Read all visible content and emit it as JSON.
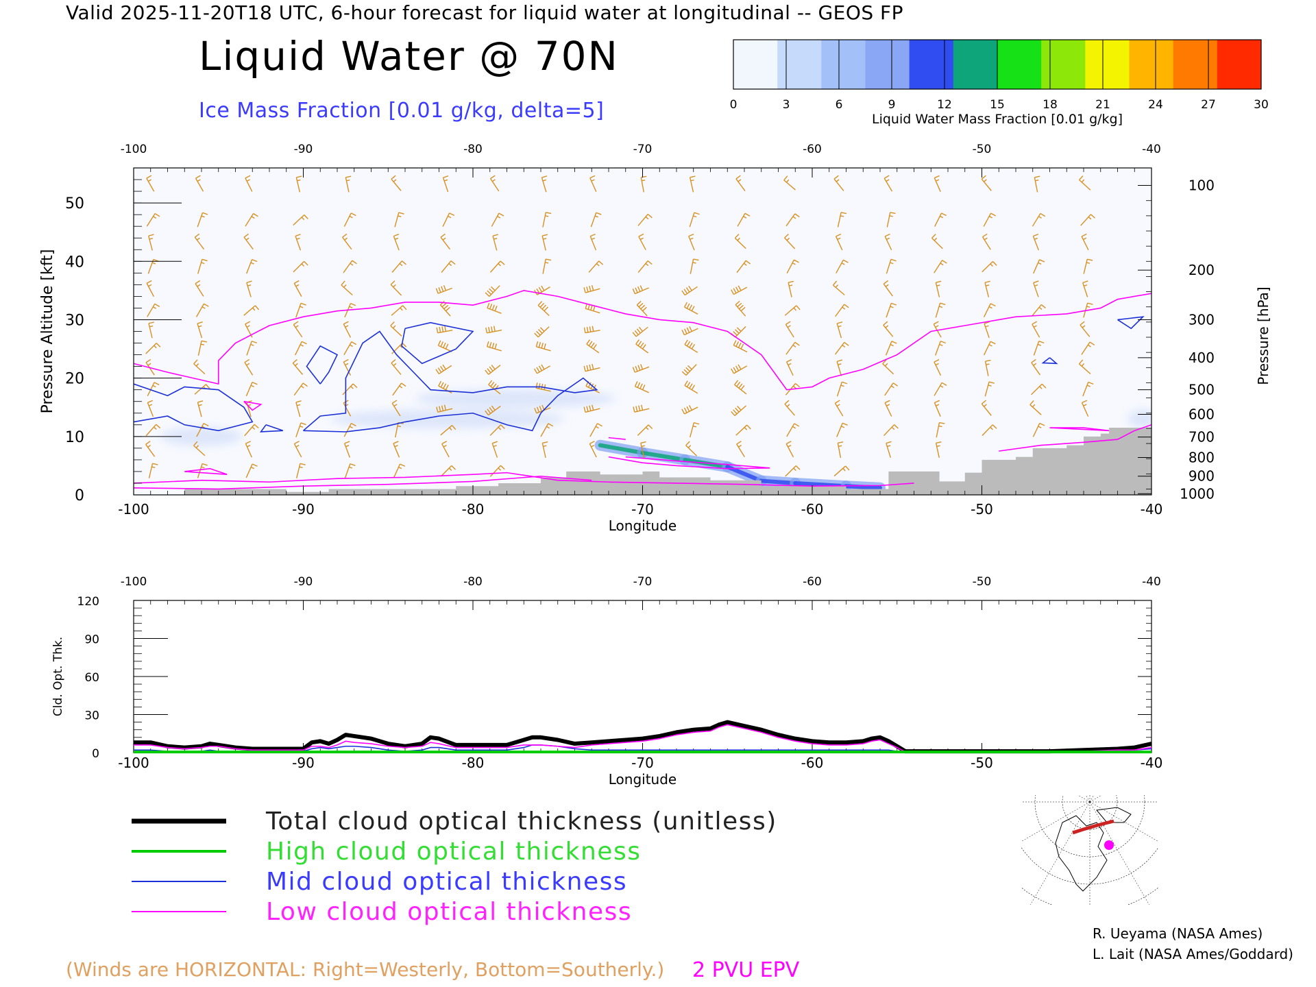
{
  "header": {
    "valid_line": "Valid 2025-11-20T18 UTC, 6-hour forecast for liquid water at longitudinal -- GEOS FP",
    "title": "Liquid Water @ 70N",
    "subtitle": "Ice Mass Fraction [0.01 g/kg, delta=5]"
  },
  "colorbar": {
    "label": "Liquid Water Mass Fraction [0.01 g/kg]",
    "ticks": [
      "0",
      "3",
      "6",
      "9",
      "12",
      "15",
      "18",
      "21",
      "24",
      "27",
      "30"
    ],
    "colors": [
      "#f2f6fd",
      "#c6dafb",
      "#a4c0f8",
      "#8aa7f5",
      "#2f4df0",
      "#0fa57a",
      "#16e016",
      "#8de80a",
      "#f4f400",
      "#ffb400",
      "#ff7a00",
      "#ff2a00"
    ]
  },
  "colors": {
    "ice_contour": "#1a2fd8",
    "epv_contour": "#ff00ff",
    "wind_barbs": "#d89020",
    "terrain": "#bbbbbb",
    "total": "#000000",
    "high": "#00cc00",
    "mid": "#1a2fd8",
    "low": "#ff00ff"
  },
  "chart_data": [
    {
      "type": "heatmap",
      "title": "Liquid Water @ 70N",
      "xlabel": "Longitude",
      "ylabel": "Pressure Altitude [kft]",
      "y2label": "Pressure [hPa]",
      "xlim": [
        -100,
        -40
      ],
      "ylim": [
        0,
        56
      ],
      "x_ticks": [
        "-100",
        "-90",
        "-80",
        "-70",
        "-60",
        "-50",
        "-40"
      ],
      "y_ticks": [
        "0",
        "10",
        "20",
        "30",
        "40",
        "50"
      ],
      "pressure_ticks": [
        {
          "label": "100",
          "kft": 53
        },
        {
          "label": "200",
          "kft": 38.5
        },
        {
          "label": "300",
          "kft": 30
        },
        {
          "label": "400",
          "kft": 23.5
        },
        {
          "label": "500",
          "kft": 18
        },
        {
          "label": "600",
          "kft": 13.8
        },
        {
          "label": "700",
          "kft": 9.9
        },
        {
          "label": "800",
          "kft": 6.4
        },
        {
          "label": "900",
          "kft": 3.2
        },
        {
          "label": "1000",
          "kft": 0.2
        }
      ],
      "liquid_water_band": [
        {
          "lon": -72.5,
          "kft": 8.5,
          "value": 9
        },
        {
          "lon": -70,
          "kft": 7.2,
          "value": 14
        },
        {
          "lon": -67.5,
          "kft": 6.0,
          "value": 13
        },
        {
          "lon": -65,
          "kft": 4.8,
          "value": 10
        },
        {
          "lon": -63,
          "kft": 2.4,
          "value": 9
        },
        {
          "lon": -61,
          "kft": 2.0,
          "value": 12
        },
        {
          "lon": -58,
          "kft": 1.5,
          "value": 10
        },
        {
          "lon": -56,
          "kft": 1.2,
          "value": 6
        }
      ],
      "ice_contours": [
        [
          [
            -100,
            19
          ],
          [
            -98,
            17
          ],
          [
            -97,
            18.5
          ],
          [
            -95,
            18
          ],
          [
            -93.5,
            15
          ],
          [
            -93,
            12.5
          ],
          [
            -95,
            11
          ],
          [
            -97,
            12
          ],
          [
            -98,
            13.5
          ],
          [
            -100,
            12.5
          ]
        ],
        [
          [
            -89,
            19
          ],
          [
            -89.8,
            22
          ],
          [
            -89,
            25.5
          ],
          [
            -88,
            24
          ],
          [
            -88.5,
            21
          ],
          [
            -89,
            19
          ]
        ],
        [
          [
            -90,
            11
          ],
          [
            -89,
            13.5
          ],
          [
            -87.5,
            14
          ],
          [
            -87.5,
            20
          ],
          [
            -86.5,
            26
          ],
          [
            -85.5,
            28
          ],
          [
            -84.5,
            24
          ],
          [
            -83.5,
            21
          ],
          [
            -82.5,
            18
          ],
          [
            -80,
            17.5
          ],
          [
            -78,
            18.5
          ],
          [
            -76,
            18.5
          ],
          [
            -74,
            17.5
          ],
          [
            -72.7,
            18
          ],
          [
            -73.5,
            20
          ],
          [
            -75,
            17
          ],
          [
            -76,
            14
          ],
          [
            -76.5,
            11
          ],
          [
            -78,
            12
          ],
          [
            -80,
            14
          ],
          [
            -82,
            13.5
          ],
          [
            -84,
            12.5
          ],
          [
            -85.5,
            11.5
          ],
          [
            -87.5,
            10.8
          ],
          [
            -90,
            11
          ]
        ],
        [
          [
            -84,
            28.5
          ],
          [
            -82.5,
            29.5
          ],
          [
            -80,
            28
          ],
          [
            -81,
            25
          ],
          [
            -83,
            22.5
          ],
          [
            -84.2,
            25.5
          ],
          [
            -84,
            28.5
          ]
        ],
        [
          [
            -92.2,
            12
          ],
          [
            -91.2,
            11
          ],
          [
            -92.5,
            10.8
          ],
          [
            -92.2,
            12
          ]
        ],
        [
          [
            -46,
            23.5
          ],
          [
            -45.6,
            22.5
          ],
          [
            -46.4,
            22.6
          ],
          [
            -46,
            23.5
          ]
        ],
        [
          [
            -42,
            30
          ],
          [
            -40.5,
            30.5
          ],
          [
            -41.2,
            28.5
          ],
          [
            -42,
            30
          ]
        ]
      ],
      "epv_contours": [
        [
          [
            -100,
            22.5
          ],
          [
            -98,
            21
          ],
          [
            -96.5,
            20
          ],
          [
            -95,
            19
          ],
          [
            -95,
            23
          ],
          [
            -94,
            26
          ],
          [
            -92,
            29
          ],
          [
            -90,
            30.5
          ],
          [
            -88,
            31.5
          ],
          [
            -86,
            32
          ],
          [
            -84,
            33
          ],
          [
            -82,
            33
          ],
          [
            -80,
            32.5
          ],
          [
            -78,
            34
          ],
          [
            -77,
            35
          ],
          [
            -75,
            34
          ],
          [
            -73,
            32.5
          ],
          [
            -71,
            31
          ],
          [
            -69,
            30
          ],
          [
            -67,
            29.5
          ],
          [
            -65,
            28
          ],
          [
            -63,
            24
          ],
          [
            -61.5,
            18
          ],
          [
            -60,
            18.5
          ],
          [
            -59,
            20
          ],
          [
            -57,
            21.5
          ],
          [
            -55,
            24
          ],
          [
            -53,
            28
          ],
          [
            -51,
            29
          ],
          [
            -48,
            30.5
          ],
          [
            -45,
            31
          ],
          [
            -43,
            32
          ],
          [
            -42,
            33.5
          ],
          [
            -40,
            34.5
          ]
        ],
        [
          [
            -93.5,
            16
          ],
          [
            -92.5,
            15.5
          ],
          [
            -93,
            14.5
          ],
          [
            -93.5,
            16
          ]
        ],
        [
          [
            -97,
            4
          ],
          [
            -95.5,
            4.5
          ],
          [
            -94.5,
            3.5
          ],
          [
            -97,
            4
          ]
        ],
        [
          [
            -100,
            2
          ],
          [
            -96,
            2.5
          ],
          [
            -92,
            2.2
          ],
          [
            -88,
            2.8
          ],
          [
            -84,
            3
          ],
          [
            -80,
            3.5
          ],
          [
            -78,
            3.8
          ],
          [
            -75,
            2.5
          ],
          [
            -72,
            2.2
          ],
          [
            -68,
            2
          ],
          [
            -64,
            1.8
          ],
          [
            -60,
            1.5
          ],
          [
            -56,
            1.6
          ],
          [
            -54,
            2
          ]
        ],
        [
          [
            -100,
            1.2
          ],
          [
            -95,
            1
          ],
          [
            -90,
            1.5
          ],
          [
            -85,
            1.8
          ],
          [
            -80,
            2.3
          ],
          [
            -76,
            3.2
          ],
          [
            -73,
            2.5
          ]
        ],
        [
          [
            -72,
            6.5
          ],
          [
            -70,
            5.5
          ],
          [
            -68,
            5
          ],
          [
            -65,
            4.5
          ],
          [
            -62.5,
            4.6
          ],
          [
            -65,
            5.2
          ],
          [
            -68,
            5.8
          ],
          [
            -71,
            6.5
          ]
        ],
        [
          [
            -49,
            7.5
          ],
          [
            -46.5,
            8.5
          ],
          [
            -44,
            9
          ],
          [
            -42,
            9.5
          ],
          [
            -41,
            11
          ],
          [
            -40,
            12
          ]
        ],
        [
          [
            -46,
            11.5
          ],
          [
            -44,
            11.5
          ],
          [
            -42.5,
            11
          ],
          [
            -46,
            11.5
          ]
        ],
        [
          [
            -72,
            9.8
          ],
          [
            -71,
            9.5
          ],
          [
            -72,
            9.8
          ]
        ]
      ],
      "terrain_steps": [
        [
          -100,
          0
        ],
        [
          -97,
          1
        ],
        [
          -92,
          1
        ],
        [
          -91,
          0.5
        ],
        [
          -88.5,
          1
        ],
        [
          -82,
          1
        ],
        [
          -81,
          1.5
        ],
        [
          -78.5,
          2
        ],
        [
          -76,
          3
        ],
        [
          -74.5,
          4
        ],
        [
          -72.5,
          3.5
        ],
        [
          -70,
          4
        ],
        [
          -69,
          3
        ],
        [
          -66,
          2.5
        ],
        [
          -63,
          1.5
        ],
        [
          -58,
          1
        ],
        [
          -55.5,
          4
        ],
        [
          -52.5,
          2.3
        ],
        [
          -51,
          3.8
        ],
        [
          -50,
          6
        ],
        [
          -48,
          6.5
        ],
        [
          -47,
          8
        ],
        [
          -45,
          8.5
        ],
        [
          -44,
          10
        ],
        [
          -43,
          10.5
        ],
        [
          -42.5,
          11.5
        ],
        [
          -40,
          11.5
        ]
      ]
    },
    {
      "type": "line",
      "xlabel": "Longitude",
      "ylabel": "Cld. Opt. Thk.",
      "xlim": [
        -100,
        -40
      ],
      "ylim": [
        0,
        120
      ],
      "x_ticks": [
        "-100",
        "-90",
        "-80",
        "-70",
        "-60",
        "-50",
        "-40"
      ],
      "y_ticks": [
        "0",
        "30",
        "60",
        "90",
        "120"
      ],
      "x": [
        -100,
        -99,
        -98,
        -97,
        -96,
        -95.5,
        -95,
        -94,
        -93,
        -92,
        -91,
        -90,
        -89.5,
        -89,
        -88.5,
        -88,
        -87.5,
        -87,
        -86,
        -85,
        -84,
        -83,
        -82.5,
        -82,
        -81,
        -80,
        -79,
        -78,
        -77,
        -76.5,
        -76,
        -75,
        -74,
        -73,
        -72,
        -71,
        -70,
        -69,
        -68,
        -67,
        -66,
        -65.5,
        -65,
        -64,
        -63,
        -62,
        -61,
        -60,
        -59,
        -58,
        -57,
        -56.5,
        -56,
        -55.5,
        -55,
        -54.5,
        -54,
        -50,
        -46,
        -44,
        -42,
        -41,
        -40
      ],
      "series": [
        {
          "name": "Total cloud optical thickness (unitless)",
          "values": [
            8,
            8,
            5,
            4,
            5,
            7,
            6,
            4,
            3,
            3,
            3,
            3,
            8,
            9,
            7,
            10,
            14,
            13,
            11,
            7,
            5,
            7,
            12,
            11,
            6,
            6,
            6,
            6,
            10,
            12,
            12,
            10,
            7,
            8,
            9,
            10,
            11,
            13,
            16,
            18,
            19,
            22,
            24,
            21,
            18,
            14,
            11,
            9,
            8,
            8,
            9,
            11,
            12,
            9,
            5,
            1,
            1,
            1,
            1,
            2,
            3,
            4,
            7
          ]
        },
        {
          "name": "High cloud optical thickness",
          "values": [
            0.5,
            0.5,
            0.5,
            0.5,
            0.5,
            0.5,
            0.5,
            0.5,
            0.5,
            0.5,
            0.5,
            0.5,
            0.5,
            0.5,
            0.5,
            0.5,
            0.5,
            0.5,
            0.5,
            0.5,
            0.5,
            0.5,
            0.5,
            0.5,
            0.5,
            0.5,
            0.5,
            0.5,
            0.5,
            0.5,
            0.5,
            0.5,
            0.5,
            0.5,
            0.5,
            0.5,
            0.5,
            0.5,
            0.5,
            0.5,
            0.5,
            0.5,
            0.5,
            0.5,
            0.5,
            0.5,
            0.5,
            0.5,
            0.5,
            0.5,
            0.5,
            0.5,
            0.5,
            0.5,
            0.5,
            0.5,
            0.5,
            0.5,
            0.5,
            0.5,
            0.5,
            0.5,
            0.5
          ]
        },
        {
          "name": "Mid cloud optical thickness",
          "values": [
            2,
            2,
            1,
            1,
            1,
            2,
            1,
            1,
            1,
            1,
            1,
            1,
            3,
            4,
            3,
            4,
            5,
            5,
            4,
            2,
            1,
            2,
            4,
            4,
            2,
            2,
            2,
            2,
            4,
            6,
            6,
            5,
            3,
            2,
            2,
            2,
            2,
            2,
            2,
            2,
            2,
            2,
            2,
            2,
            2,
            2,
            2,
            2,
            2,
            2,
            2,
            2,
            2,
            2,
            1,
            1,
            1,
            1,
            1,
            1,
            1,
            2,
            3
          ]
        },
        {
          "name": "Low cloud optical thickness",
          "values": [
            6,
            6,
            4,
            3,
            4,
            5,
            5,
            3,
            2,
            2,
            2,
            2,
            5,
            5,
            4,
            6,
            9,
            8,
            7,
            5,
            4,
            5,
            8,
            7,
            4,
            4,
            4,
            4,
            6,
            6,
            6,
            5,
            4,
            6,
            7,
            8,
            9,
            11,
            14,
            16,
            17,
            20,
            22,
            19,
            16,
            12,
            9,
            7,
            6,
            6,
            7,
            9,
            10,
            7,
            4,
            0.5,
            0.5,
            0.5,
            0.5,
            1,
            2,
            2,
            4
          ]
        }
      ]
    }
  ],
  "legend": [
    {
      "label": "Total cloud optical thickness (unitless)",
      "color": "#000000",
      "text_color": "#222222"
    },
    {
      "label": "High cloud optical thickness",
      "color": "#00cc00",
      "text_color": "#33dd33"
    },
    {
      "label": "Mid cloud optical thickness",
      "color": "#1a2fd8",
      "text_color": "#3b3bff"
    },
    {
      "label": "Low cloud optical thickness",
      "color": "#ff00ff",
      "text_color": "#ff22ff"
    }
  ],
  "notes": {
    "winds": "(Winds are HORIZONTAL: Right=Westerly, Bottom=Southerly.)",
    "epv": "2 PVU EPV"
  },
  "credits": [
    "R. Ueyama (NASA Ames)",
    "L. Lait (NASA Ames/Goddard)"
  ],
  "locator_map": {
    "icon": "polar-map-icon"
  }
}
